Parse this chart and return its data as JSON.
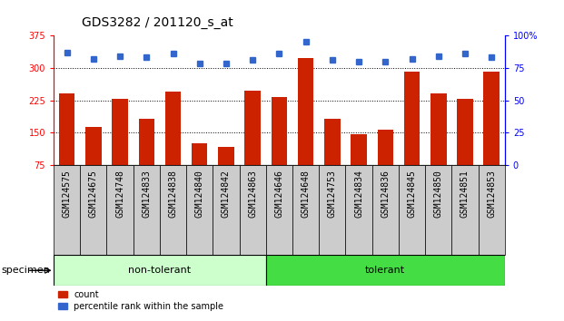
{
  "title": "GDS3282 / 201120_s_at",
  "samples": [
    "GSM124575",
    "GSM124675",
    "GSM124748",
    "GSM124833",
    "GSM124838",
    "GSM124840",
    "GSM124842",
    "GSM124863",
    "GSM124646",
    "GSM124648",
    "GSM124753",
    "GSM124834",
    "GSM124836",
    "GSM124845",
    "GSM124850",
    "GSM124851",
    "GSM124853"
  ],
  "counts": [
    242,
    163,
    228,
    183,
    245,
    125,
    118,
    248,
    232,
    322,
    182,
    147,
    158,
    292,
    240,
    228,
    292
  ],
  "percentile_ranks": [
    87,
    82,
    84,
    83,
    86,
    78,
    78,
    81,
    86,
    95,
    81,
    80,
    80,
    82,
    84,
    86,
    83
  ],
  "group_labels": [
    "non-tolerant",
    "tolerant"
  ],
  "group_counts": [
    8,
    9
  ],
  "ylim_left": [
    75,
    375
  ],
  "ylim_right": [
    0,
    100
  ],
  "yticks_left": [
    75,
    150,
    225,
    300,
    375
  ],
  "yticks_right": [
    0,
    25,
    50,
    75,
    100
  ],
  "ytick_right_labels": [
    "0",
    "25",
    "50",
    "75",
    "100%"
  ],
  "bar_color": "#cc2200",
  "dot_color": "#3366cc",
  "bg_color": "#ffffff",
  "non_tolerant_bg": "#ccffcc",
  "tolerant_bg": "#44dd44",
  "xtick_bg": "#cccccc",
  "specimen_label": "specimen",
  "legend_count_label": "count",
  "legend_pct_label": "percentile rank within the sample",
  "title_fontsize": 10,
  "tick_fontsize": 7,
  "group_label_fontsize": 8,
  "legend_fontsize": 7,
  "grid_yticks": [
    150,
    225,
    300
  ],
  "non_tolerant_count": 8,
  "tolerant_count": 9
}
